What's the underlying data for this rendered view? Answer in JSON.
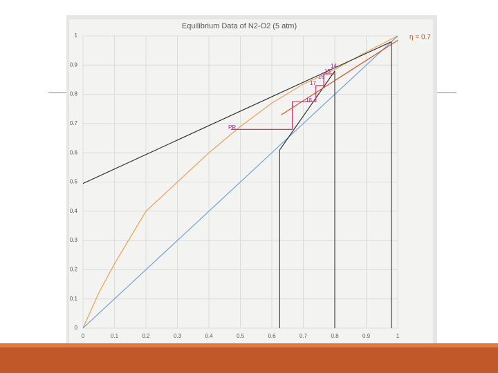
{
  "chart_data": {
    "type": "line",
    "title": "Equilibrium Data of N2-O2 (5 atm)",
    "xlim": [
      0,
      1
    ],
    "ylim": [
      0,
      1
    ],
    "xticks": [
      0,
      0.1,
      0.2,
      0.3,
      0.4,
      0.5,
      0.6,
      0.7,
      0.8,
      0.9,
      1
    ],
    "yticks": [
      0,
      0.1,
      0.2,
      0.3,
      0.4,
      0.5,
      0.6,
      0.7,
      0.8,
      0.9,
      1
    ],
    "grid": true,
    "series": [
      {
        "color": "#f0a050",
        "x": [
          0,
          0.05,
          0.1,
          0.2,
          0.3,
          0.4,
          0.5,
          0.6,
          0.7,
          0.8,
          0.9,
          1
        ],
        "y": [
          0,
          0.12,
          0.22,
          0.4,
          0.5,
          0.6,
          0.69,
          0.77,
          0.835,
          0.885,
          0.945,
          1
        ]
      },
      {
        "color": "#6fa3d8",
        "x": [
          0,
          1
        ],
        "y": [
          0,
          1
        ]
      },
      {
        "color": "#333333",
        "x": [
          0,
          0.98
        ],
        "y": [
          0.495,
          0.98
        ]
      },
      {
        "color": "#333333",
        "x": [
          0.625,
          0.8
        ],
        "y": [
          0.61,
          0.88
        ]
      },
      {
        "color": "#d9531e",
        "x": [
          0.63,
          1
        ],
        "y": [
          0.73,
          0.985
        ]
      },
      {
        "color": "#444444",
        "x": [
          0.625,
          0.625,
          null,
          0.8,
          0.8,
          null,
          0.98,
          0.98
        ],
        "y": [
          0,
          0.61,
          null,
          0,
          0.88,
          null,
          0,
          0.98
        ]
      },
      {
        "color": "#d6336c",
        "x": [
          0.8,
          0.765,
          0.765,
          0.74,
          0.74,
          0.665,
          0.665,
          0.47
        ],
        "y": [
          0.87,
          0.87,
          0.83,
          0.83,
          0.775,
          0.775,
          0.68,
          0.68
        ]
      }
    ],
    "annotations": [
      "PR",
      "18",
      "17",
      "16",
      "15",
      "14",
      "η = 0.7"
    ]
  }
}
